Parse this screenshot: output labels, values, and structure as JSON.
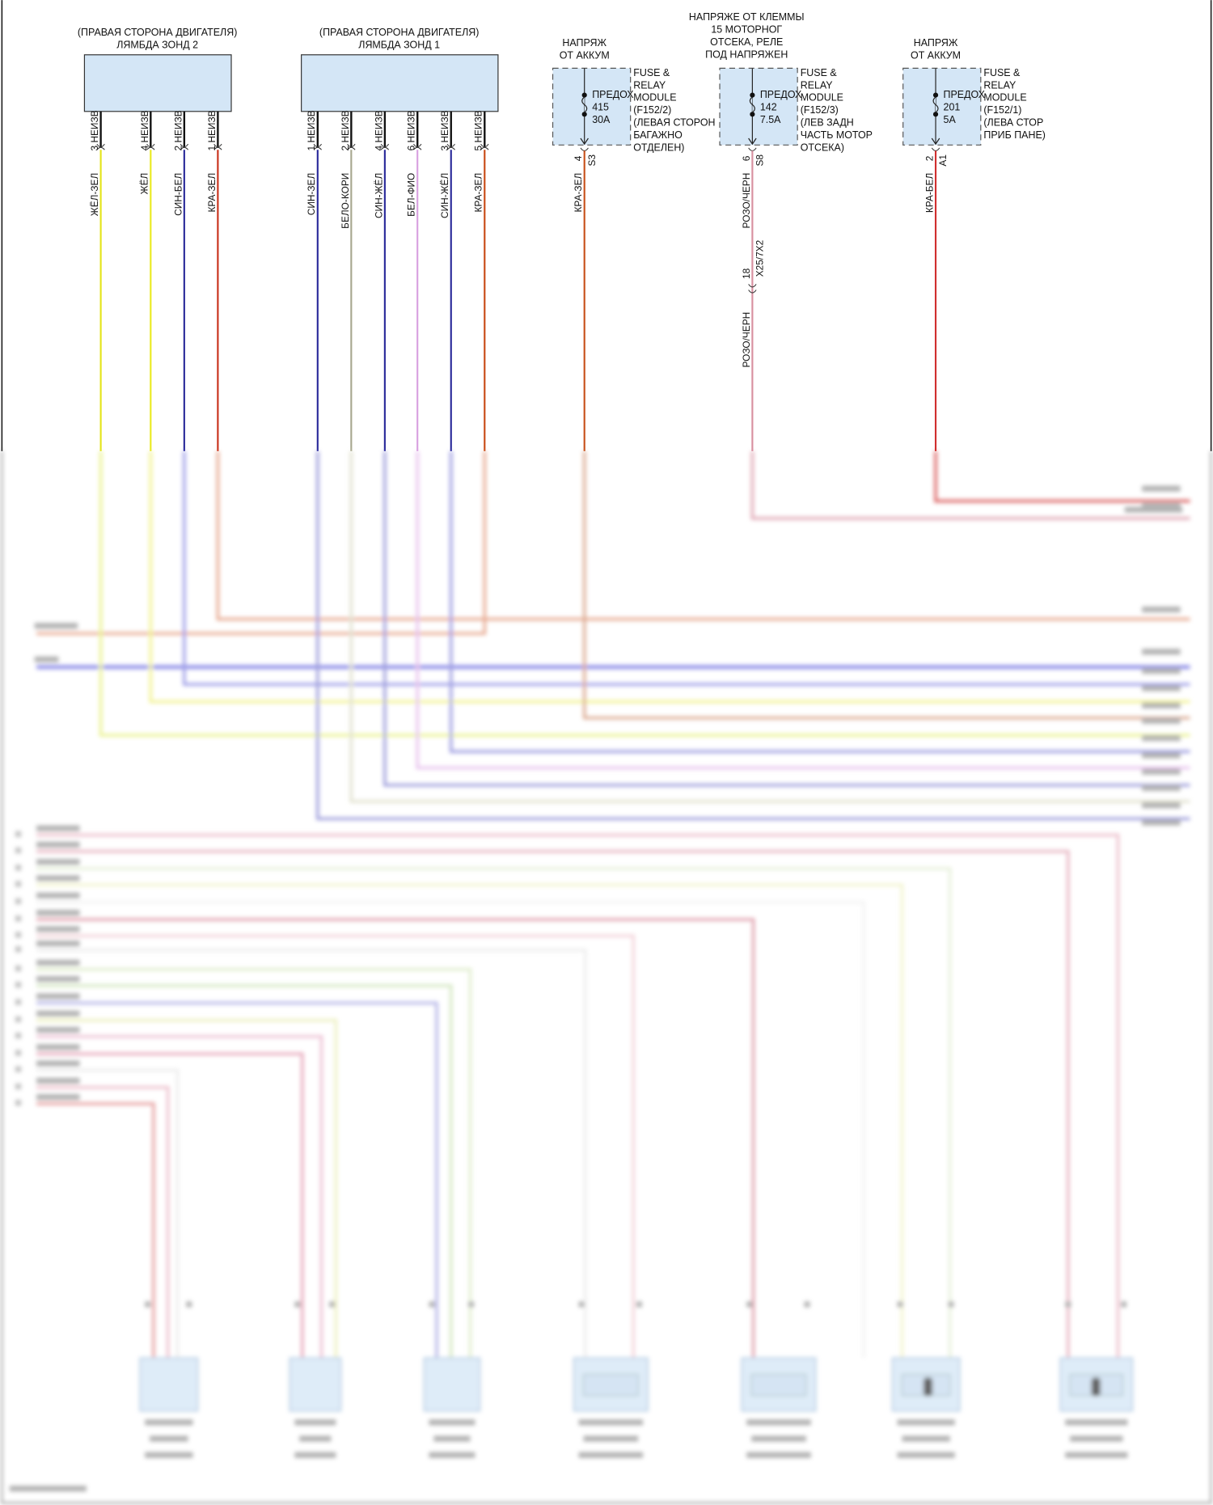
{
  "sensors": [
    {
      "title_line1": "(ПРАВАЯ СТОРОНА ДВИГАТЕЛЯ)",
      "title_line2": "ЛЯМБДА ЗОНД 2",
      "wires": [
        {
          "pin": "3 НЕИЗВ",
          "label": "ЖЁЛ-ЗЕЛ",
          "color": "#e4e41a"
        },
        {
          "pin": "4 НЕИЗВ",
          "label": "ЖЁЛ",
          "color": "#eaea20"
        },
        {
          "pin": "2 НЕИЗВ",
          "label": "СИН-БЕЛ",
          "color": "#2a2a9a"
        },
        {
          "pin": "1 НЕИЗВ",
          "label": "КРА-ЗЕЛ",
          "color": "#c8301a"
        }
      ]
    },
    {
      "title_line1": "(ПРАВАЯ СТОРОНА ДВИГАТЕЛЯ)",
      "title_line2": "ЛЯМБДА ЗОНД 1",
      "wires": [
        {
          "pin": "1 НЕИЗВ",
          "label": "СИН-ЗЕЛ",
          "color": "#2a2a9a"
        },
        {
          "pin": "2 НЕИЗВ",
          "label": "БЕЛО-КОРИ",
          "color": "#a8a890"
        },
        {
          "pin": "4 НЕИЗВ",
          "label": "СИН-ЖЁЛ",
          "color": "#2a2a9a"
        },
        {
          "pin": "6 НЕИЗВ",
          "label": "БЕЛ-ФИО",
          "color": "#d8a0e0"
        },
        {
          "pin": "3 НЕИЗВ",
          "label": "СИН-ЖЁЛ",
          "color": "#2a2a9a"
        },
        {
          "pin": "5 НЕИЗВ",
          "label": "КРА-ЗЕЛ",
          "color": "#c84a14"
        }
      ]
    }
  ],
  "fuses": [
    {
      "supply_lines": [
        "НАПРЯЖ",
        "ОТ АККУМ"
      ],
      "fuse_label": "ПРЕДОХ",
      "number": "415",
      "rating": "30A",
      "module_lines": [
        "FUSE &",
        "RELAY",
        "MODULE",
        "(F152/2)",
        "(ЛЕВАЯ СТОРОН",
        "БАГАЖНО",
        "ОТДЕЛЕН)"
      ],
      "pin": "4",
      "connector": "S3",
      "wire_label": "КРА-ЗЕЛ",
      "wire_color": "#c8501a"
    },
    {
      "supply_lines": [
        "НАПРЯЖЕ ОТ КЛЕММЫ",
        "15 МОТОРНОГ",
        "ОТСЕКА, РЕЛЕ",
        "ПОД НАПРЯЖЕН"
      ],
      "fuse_label": "ПРЕДОХ",
      "number": "142",
      "rating": "7.5A",
      "module_lines": [
        "FUSE &",
        "RELAY",
        "MODULE",
        "(F152/3)",
        "(ЛЕВ ЗАДН",
        "ЧАСТЬ МОТОР",
        "ОТСЕКА)"
      ],
      "pin": "6",
      "connector": "S8",
      "wire_label": "РОЗО/ЧЕРН",
      "wire_color": "#d890a0",
      "inline_connector": {
        "pin": "18",
        "name": "X25/7X2",
        "wire_label": "РОЗО/ЧЕРН"
      }
    },
    {
      "supply_lines": [
        "НАПРЯЖ",
        "ОТ АККУМ"
      ],
      "fuse_label": "ПРЕДОХ",
      "number": "201",
      "rating": "5A",
      "module_lines": [
        "FUSE &",
        "RELAY",
        "MODULE",
        "(F152/1)",
        "(ЛЕВА СТОР",
        "ПРИБ ПАНЕ)"
      ],
      "pin": "2",
      "connector": "A1",
      "wire_label": "КРА-БЕЛ",
      "wire_color": "#d03030"
    }
  ],
  "colors": {
    "component_fill": "#d4e6f6",
    "frame": "#222222"
  }
}
